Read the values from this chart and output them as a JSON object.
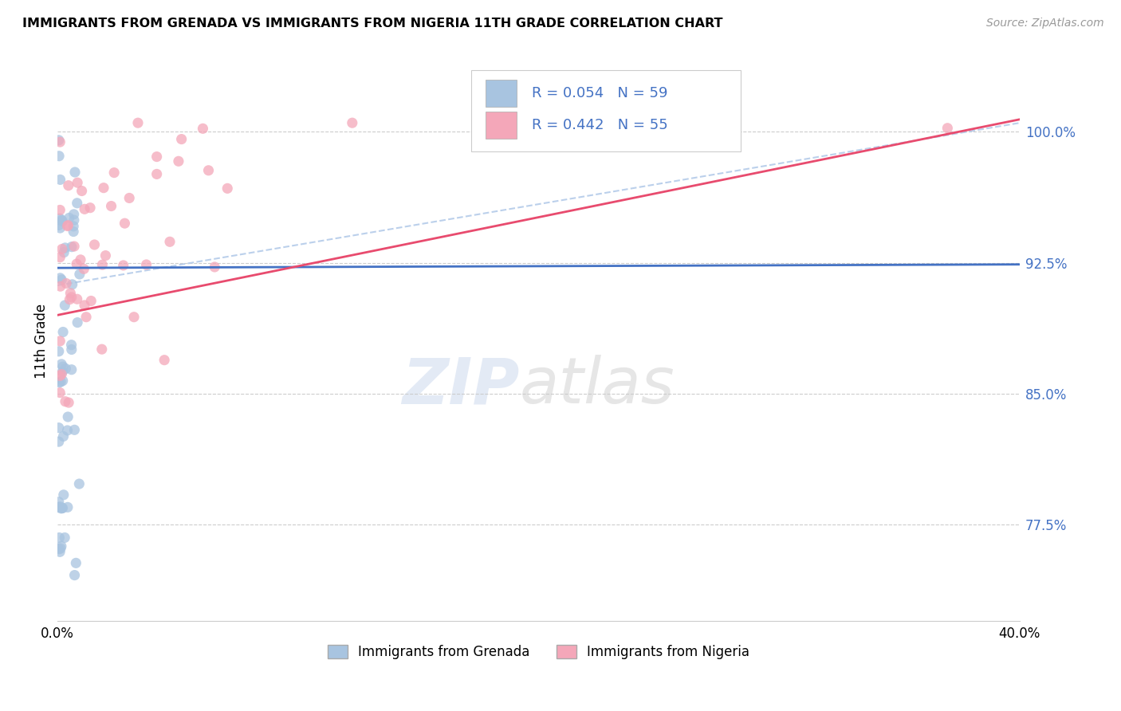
{
  "title": "IMMIGRANTS FROM GRENADA VS IMMIGRANTS FROM NIGERIA 11TH GRADE CORRELATION CHART",
  "source": "Source: ZipAtlas.com",
  "ylabel": "11th Grade",
  "yticks": [
    "100.0%",
    "92.5%",
    "85.0%",
    "77.5%"
  ],
  "ytick_vals": [
    1.0,
    0.925,
    0.85,
    0.775
  ],
  "xlim": [
    0.0,
    0.4
  ],
  "ylim": [
    0.72,
    1.04
  ],
  "grenada_R": 0.054,
  "grenada_N": 59,
  "nigeria_R": 0.442,
  "nigeria_N": 55,
  "grenada_color": "#a8c4e0",
  "nigeria_color": "#f4a7b9",
  "grenada_line_color": "#4472c4",
  "nigeria_line_color": "#e84b6e",
  "dashed_line_color": "#b0c8e8",
  "legend_grenada_label": "Immigrants from Grenada",
  "legend_nigeria_label": "Immigrants from Nigeria",
  "tick_color": "#4472c4",
  "grid_color": "#cccccc",
  "source_color": "#999999"
}
